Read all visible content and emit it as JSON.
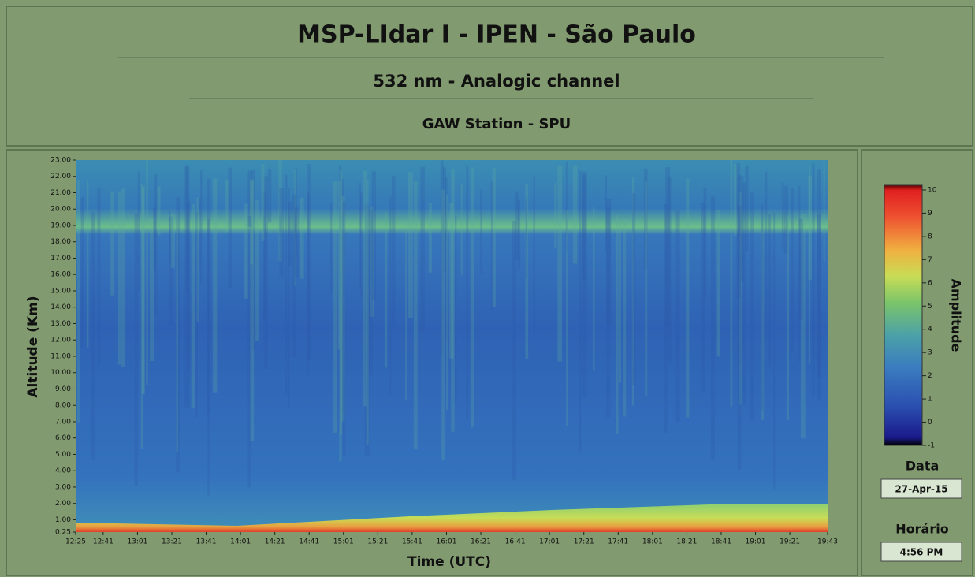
{
  "header": {
    "title": "MSP-LIdar I - IPEN - São Paulo",
    "subtitle": "532 nm - Analogic channel",
    "station": "GAW Station - SPU"
  },
  "chart_data": {
    "type": "heatmap",
    "x_label": "Time (UTC)",
    "y_label": "Altitude (Km)",
    "x": [
      "12:25",
      "12:41",
      "13:01",
      "13:21",
      "13:41",
      "14:01",
      "14:21",
      "14:41",
      "15:01",
      "15:21",
      "15:41",
      "16:01",
      "16:21",
      "16:41",
      "17:01",
      "17:21",
      "17:41",
      "18:01",
      "18:21",
      "18:41",
      "19:01",
      "19:21",
      "19:43"
    ],
    "ylim": [
      0.25,
      23
    ],
    "yticks": [
      {
        "value": 0.25,
        "label": "0.25"
      },
      {
        "value": 1,
        "label": "1.00"
      },
      {
        "value": 2,
        "label": "2.00"
      },
      {
        "value": 3,
        "label": "3.00"
      },
      {
        "value": 4,
        "label": "4.00"
      },
      {
        "value": 5,
        "label": "5.00"
      },
      {
        "value": 6,
        "label": "6.00"
      },
      {
        "value": 7,
        "label": "7.00"
      },
      {
        "value": 8,
        "label": "8.00"
      },
      {
        "value": 9,
        "label": "9.00"
      },
      {
        "value": 10,
        "label": "10.00"
      },
      {
        "value": 11,
        "label": "11.00"
      },
      {
        "value": 12,
        "label": "12.00"
      },
      {
        "value": 13,
        "label": "13.00"
      },
      {
        "value": 14,
        "label": "14.00"
      },
      {
        "value": 15,
        "label": "15.00"
      },
      {
        "value": 16,
        "label": "16.00"
      },
      {
        "value": 17,
        "label": "17.00"
      },
      {
        "value": 18,
        "label": "18.00"
      },
      {
        "value": 19,
        "label": "19.00"
      },
      {
        "value": 20,
        "label": "20.00"
      },
      {
        "value": 21,
        "label": "21.00"
      },
      {
        "value": 22,
        "label": "22.00"
      },
      {
        "value": 23,
        "label": "23.00"
      }
    ],
    "colorbar": {
      "label": "Amplitude",
      "lim": [
        -1,
        10
      ],
      "ticks": [
        -1,
        0,
        1,
        2,
        3,
        4,
        5,
        6,
        7,
        8,
        9,
        10
      ]
    }
  },
  "info": {
    "date_label": "Data",
    "date": "27-Apr-15",
    "time_label": "Horário",
    "time": "4:56 PM"
  }
}
